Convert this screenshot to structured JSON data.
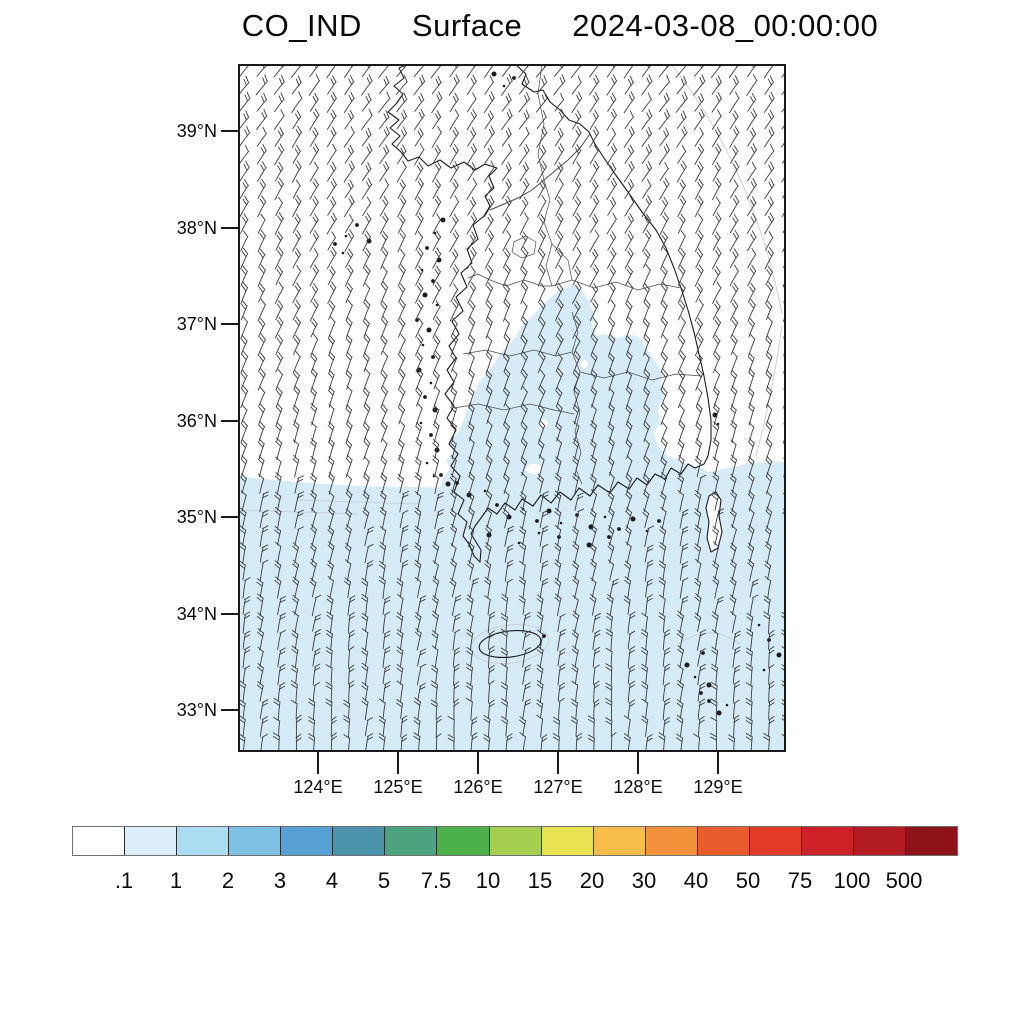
{
  "title": {
    "variable": "CO_IND",
    "level": "Surface",
    "datetime": "2024-03-08_00:00:00"
  },
  "axes": {
    "y": [
      "39°N",
      "38°N",
      "37°N",
      "36°N",
      "35°N",
      "34°N",
      "33°N"
    ],
    "x": [
      "124°E",
      "125°E",
      "126°E",
      "127°E",
      "128°E",
      "129°E"
    ]
  },
  "colorbar": {
    "labels": [
      ".1",
      "1",
      "2",
      "3",
      "4",
      "5",
      "7.5",
      "10",
      "15",
      "20",
      "30",
      "40",
      "50",
      "75",
      "100",
      "500"
    ],
    "colors": [
      "#ffffff",
      "#dceef9",
      "#abdcf2",
      "#7fc1e4",
      "#56a0d3",
      "#4994ab",
      "#4ba47d",
      "#4db14b",
      "#a5d04f",
      "#e9e351",
      "#f7bd4b",
      "#f3923a",
      "#e85c2d",
      "#e13a27",
      "#cd2128",
      "#b11b21",
      "#8e1318"
    ]
  },
  "map": {
    "shade_color": "#d6ebf8",
    "coast_color": "#1b1b1b",
    "province_color": "#4a4a4a",
    "faint_boundary_color": "#c9ced2",
    "barb_color": "#3d3d3d",
    "frame_color": "#1a1a1a"
  },
  "chart_data": {
    "type": "heatmap",
    "title": "CO_IND Surface 2024-03-08_00:00:00",
    "variable": "CO_IND",
    "level": "Surface",
    "valid_time": "2024-03-08_00:00:00",
    "x_axis": {
      "tick_labels": [
        "124°E",
        "125°E",
        "126°E",
        "127°E",
        "128°E",
        "129°E"
      ],
      "range_deg_east": [
        123.0,
        129.85
      ]
    },
    "y_axis": {
      "tick_labels": [
        "39°N",
        "38°N",
        "37°N",
        "36°N",
        "35°N",
        "34°N",
        "33°N"
      ],
      "range_deg_north": [
        32.55,
        39.7
      ]
    },
    "legend_position": "bottom horizontal colorbar",
    "scale_levels": [
      0.1,
      1,
      2,
      3,
      4,
      5,
      7.5,
      10,
      15,
      20,
      30,
      40,
      50,
      75,
      100,
      500
    ],
    "scale_colors": [
      "#ffffff",
      "#dceef9",
      "#abdcf2",
      "#7fc1e4",
      "#56a0d3",
      "#4994ab",
      "#4ba47d",
      "#4db14b",
      "#a5d04f",
      "#e9e351",
      "#f7bd4b",
      "#f3923a",
      "#e85c2d",
      "#e13a27",
      "#cd2128",
      "#b11b21",
      "#8e1318"
    ],
    "shaded_cells": [
      {
        "value_range": "0.1-1",
        "region": "sea and coastal land south of about 35.4N across the full domain width"
      },
      {
        "value_range": "0.1-1",
        "region": "central inland South Korea, about 35.5-37.4N / 126.0-128.3E, merging with the southern band; small unshaded holes inside and an unshaded wedge in the southeast"
      }
    ],
    "unshaded": "remaining domain below 0.1 (white)",
    "wind_overlay": "surface wind barbs on a regular grid (~17 px spacing); flow from N-NNE: shafts tilted ~30-35 deg (top to the right) in the north, near-vertical northerly in the south; 1-2 feather ticks per barb",
    "basemap": "Korean peninsula coastline with province boundaries, west/south coast islands, Jeju, Geoje, Tsushima-area islets, faint offshore maritime boundaries"
  }
}
